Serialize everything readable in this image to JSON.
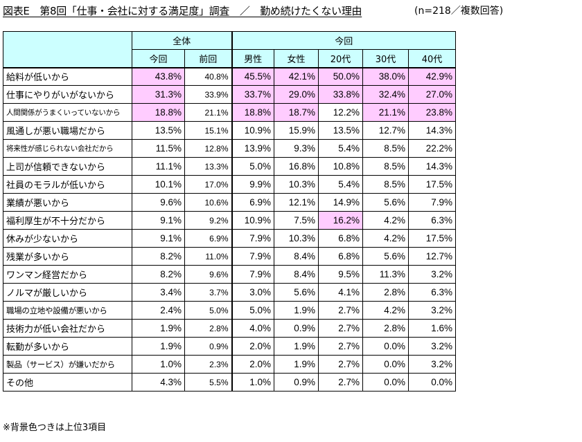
{
  "title": {
    "main": "図表E　第8回「仕事・会社に対する満足度」調査　／　勤め続けたくない理由",
    "note": "(n=218／複数回答)"
  },
  "table": {
    "group_headers": [
      "全体",
      "今回"
    ],
    "columns": [
      "今回",
      "前回",
      "男性",
      "女性",
      "20代",
      "30代",
      "40代"
    ],
    "rows": [
      {
        "label": "給料が低いから",
        "values": [
          "43.8%",
          "40.8%",
          "45.5%",
          "42.1%",
          "50.0%",
          "38.0%",
          "42.9%"
        ],
        "highlight": [
          true,
          false,
          true,
          true,
          true,
          true,
          true
        ]
      },
      {
        "label": "仕事にやりがいがないから",
        "values": [
          "31.3%",
          "33.9%",
          "33.7%",
          "29.0%",
          "33.8%",
          "32.4%",
          "27.0%"
        ],
        "highlight": [
          true,
          false,
          true,
          true,
          true,
          true,
          true
        ]
      },
      {
        "label": "人間関係がうまくいっていないから",
        "values": [
          "18.8%",
          "21.1%",
          "18.8%",
          "18.7%",
          "12.2%",
          "21.1%",
          "23.8%"
        ],
        "highlight": [
          true,
          false,
          true,
          true,
          false,
          true,
          true
        ]
      },
      {
        "label": "風通しが悪い職場だから",
        "values": [
          "13.5%",
          "15.1%",
          "10.9%",
          "15.9%",
          "13.5%",
          "12.7%",
          "14.3%"
        ],
        "highlight": [
          false,
          false,
          false,
          false,
          false,
          false,
          false
        ]
      },
      {
        "label": "将来性が感じられない会社だから",
        "values": [
          "11.5%",
          "12.8%",
          "13.9%",
          "9.3%",
          "5.4%",
          "8.5%",
          "22.2%"
        ],
        "highlight": [
          false,
          false,
          false,
          false,
          false,
          false,
          false
        ]
      },
      {
        "label": "上司が信頼できないから",
        "values": [
          "11.1%",
          "13.3%",
          "5.0%",
          "16.8%",
          "10.8%",
          "8.5%",
          "14.3%"
        ],
        "highlight": [
          false,
          false,
          false,
          false,
          false,
          false,
          false
        ]
      },
      {
        "label": "社員のモラルが低いから",
        "values": [
          "10.1%",
          "17.0%",
          "9.9%",
          "10.3%",
          "5.4%",
          "8.5%",
          "17.5%"
        ],
        "highlight": [
          false,
          false,
          false,
          false,
          false,
          false,
          false
        ]
      },
      {
        "label": "業績が悪いから",
        "values": [
          "9.6%",
          "10.6%",
          "6.9%",
          "12.1%",
          "14.9%",
          "5.6%",
          "7.9%"
        ],
        "highlight": [
          false,
          false,
          false,
          false,
          false,
          false,
          false
        ]
      },
      {
        "label": "福利厚生が不十分だから",
        "values": [
          "9.1%",
          "9.2%",
          "10.9%",
          "7.5%",
          "16.2%",
          "4.2%",
          "6.3%"
        ],
        "highlight": [
          false,
          false,
          false,
          false,
          true,
          false,
          false
        ]
      },
      {
        "label": "休みが少ないから",
        "values": [
          "9.1%",
          "6.9%",
          "7.9%",
          "10.3%",
          "6.8%",
          "4.2%",
          "17.5%"
        ],
        "highlight": [
          false,
          false,
          false,
          false,
          false,
          false,
          false
        ]
      },
      {
        "label": "残業が多いから",
        "values": [
          "8.2%",
          "11.0%",
          "7.9%",
          "8.4%",
          "6.8%",
          "5.6%",
          "12.7%"
        ],
        "highlight": [
          false,
          false,
          false,
          false,
          false,
          false,
          false
        ]
      },
      {
        "label": "ワンマン経営だから",
        "values": [
          "8.2%",
          "9.6%",
          "7.9%",
          "8.4%",
          "9.5%",
          "11.3%",
          "3.2%"
        ],
        "highlight": [
          false,
          false,
          false,
          false,
          false,
          false,
          false
        ]
      },
      {
        "label": "ノルマが厳しいから",
        "values": [
          "3.4%",
          "3.7%",
          "3.0%",
          "5.6%",
          "4.1%",
          "2.8%",
          "6.3%"
        ],
        "highlight": [
          false,
          false,
          false,
          false,
          false,
          false,
          false
        ]
      },
      {
        "label": "職場の立地や設備が悪いから",
        "values": [
          "2.4%",
          "5.0%",
          "5.0%",
          "1.9%",
          "2.7%",
          "4.2%",
          "3.2%"
        ],
        "highlight": [
          false,
          false,
          false,
          false,
          false,
          false,
          false
        ]
      },
      {
        "label": "技術力が低い会社だから",
        "values": [
          "1.9%",
          "2.8%",
          "4.0%",
          "0.9%",
          "2.7%",
          "2.8%",
          "1.6%"
        ],
        "highlight": [
          false,
          false,
          false,
          false,
          false,
          false,
          false
        ]
      },
      {
        "label": "転勤が多いから",
        "values": [
          "1.9%",
          "0.9%",
          "2.0%",
          "1.9%",
          "2.7%",
          "0.0%",
          "3.2%"
        ],
        "highlight": [
          false,
          false,
          false,
          false,
          false,
          false,
          false
        ]
      },
      {
        "label": "製品（サービス）が嫌いだから",
        "values": [
          "1.0%",
          "2.3%",
          "2.0%",
          "1.9%",
          "2.7%",
          "0.0%",
          "3.2%"
        ],
        "highlight": [
          false,
          false,
          false,
          false,
          false,
          false,
          false
        ]
      },
      {
        "label": "その他",
        "values": [
          "4.3%",
          "5.5%",
          "1.0%",
          "0.9%",
          "2.7%",
          "0.0%",
          "0.0%"
        ],
        "highlight": [
          false,
          false,
          false,
          false,
          false,
          false,
          false
        ]
      }
    ]
  },
  "footnote": "※背景色つきは上位3項目",
  "colors": {
    "header_bg": "#ccffff",
    "highlight_bg": "#ffccff"
  }
}
